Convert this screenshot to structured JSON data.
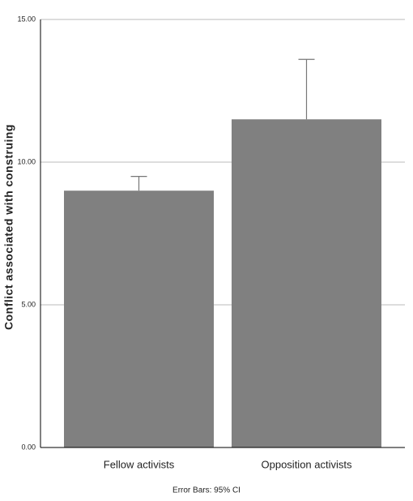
{
  "chart_data": {
    "type": "bar",
    "y_label": "Conflict associated with construing",
    "footnote": "Error Bars: 95% CI",
    "categories": [
      "Fellow activists",
      "Opposition activists"
    ],
    "values": [
      9.0,
      11.5
    ],
    "errors": [
      0.5,
      2.1
    ],
    "color": "#808080",
    "ylim": [
      0,
      15
    ],
    "yticks": [
      {
        "value": 0,
        "label": "0.00"
      },
      {
        "value": 5,
        "label": "5.00"
      },
      {
        "value": 10,
        "label": "10.00"
      },
      {
        "value": 15,
        "label": "15.00"
      }
    ],
    "grid": true
  }
}
